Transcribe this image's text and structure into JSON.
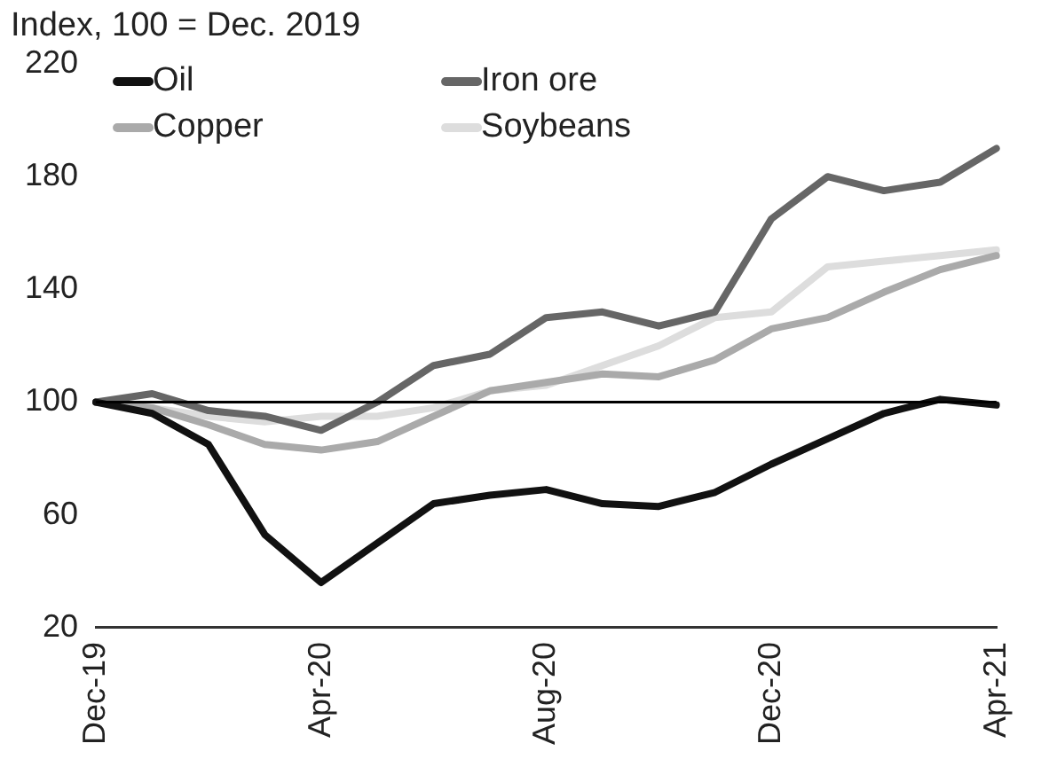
{
  "chart_data": {
    "type": "line",
    "title": "Index, 100 = Dec. 2019",
    "categories": [
      "Dec-19",
      null,
      null,
      null,
      "Apr-20",
      null,
      null,
      null,
      "Aug-20",
      null,
      null,
      null,
      "Dec-20",
      null,
      null,
      null,
      "Apr-21"
    ],
    "series": [
      {
        "name": "Oil",
        "color": "#111111",
        "values": [
          100,
          96,
          85,
          53,
          36,
          50,
          64,
          67,
          69,
          64,
          63,
          68,
          78,
          87,
          96,
          101,
          99
        ]
      },
      {
        "name": "Iron ore",
        "color": "#666666",
        "values": [
          100,
          103,
          97,
          95,
          90,
          100,
          113,
          117,
          130,
          132,
          127,
          132,
          165,
          180,
          175,
          178,
          190
        ]
      },
      {
        "name": "Copper",
        "color": "#aaaaaa",
        "values": [
          100,
          98,
          92,
          85,
          83,
          86,
          95,
          104,
          107,
          110,
          109,
          115,
          126,
          130,
          139,
          147,
          152
        ]
      },
      {
        "name": "Soybeans",
        "color": "#dddddd",
        "values": [
          100,
          98,
          95,
          93,
          95,
          95,
          98,
          104,
          106,
          113,
          120,
          130,
          132,
          148,
          150,
          152,
          154
        ]
      }
    ],
    "ylim": [
      20,
      220
    ],
    "yticks": [
      20,
      60,
      100,
      140,
      180,
      220
    ],
    "ref_lines": [
      {
        "axis": "y",
        "value": 100,
        "color": "#000000"
      }
    ],
    "legend": "top left",
    "grid": false,
    "marker": "none",
    "line_style": "solid"
  }
}
